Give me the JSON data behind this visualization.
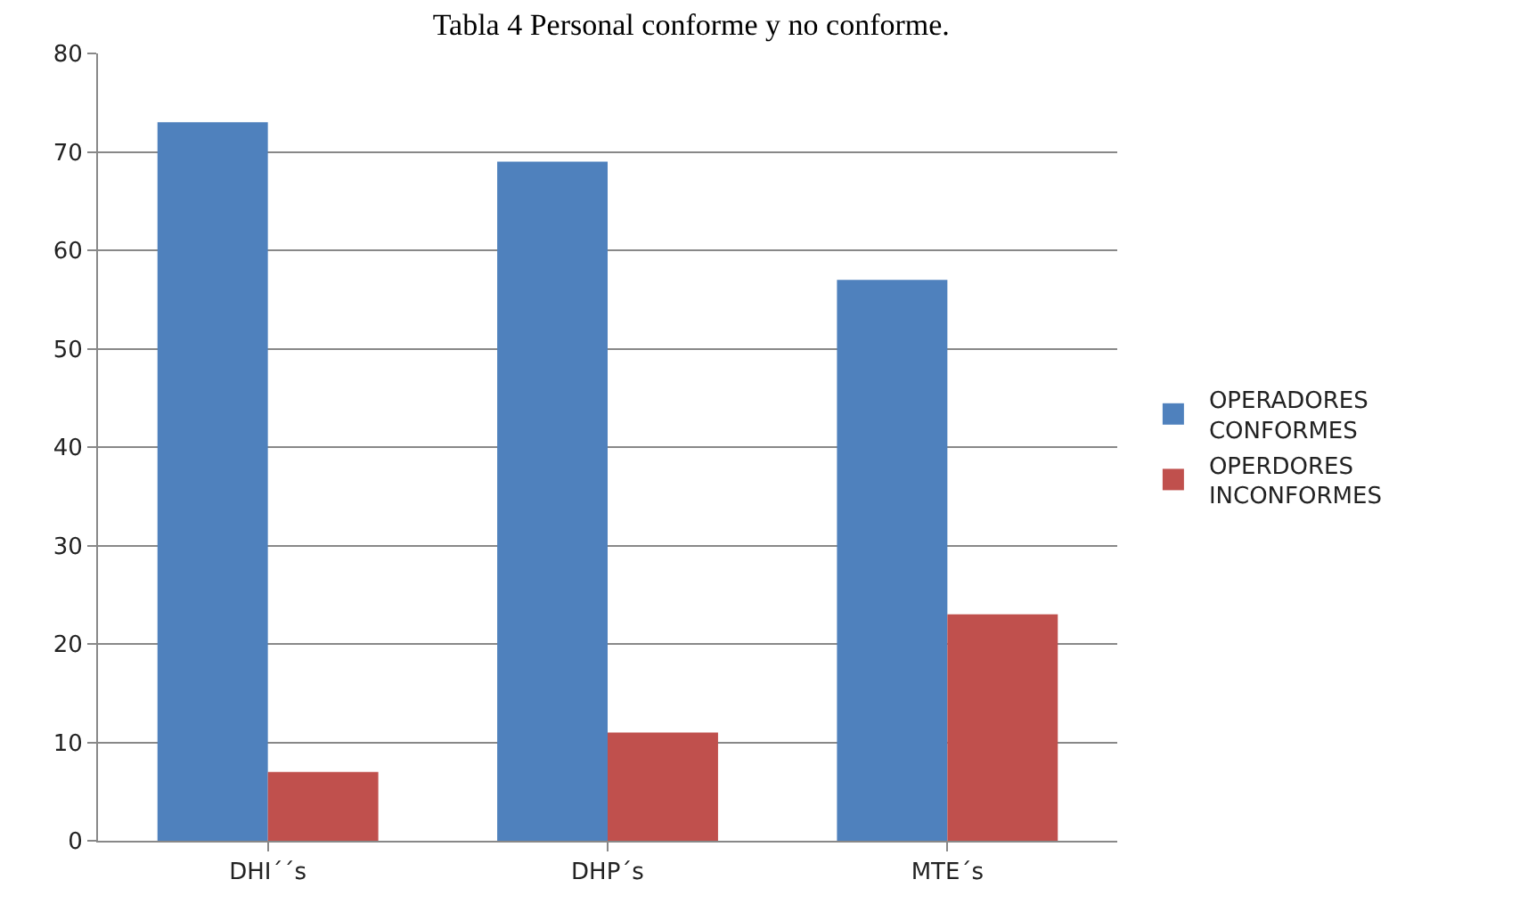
{
  "chart_data": {
    "type": "bar",
    "title": "Tabla 4 Personal conforme y no conforme.",
    "categories": [
      "DHI´´s",
      "DHP´s",
      "MTE´s"
    ],
    "series": [
      {
        "name": "OPERADORES CONFORMES",
        "color": "#4f81bd",
        "values": [
          73,
          69,
          57
        ]
      },
      {
        "name": "OPERDORES INCONFORMES",
        "color": "#c0504d",
        "values": [
          7,
          11,
          23
        ]
      }
    ],
    "ylim": [
      0,
      80
    ],
    "yticks": [
      0,
      10,
      20,
      30,
      40,
      50,
      60,
      70,
      80
    ],
    "grid": "y",
    "legend": "right"
  }
}
